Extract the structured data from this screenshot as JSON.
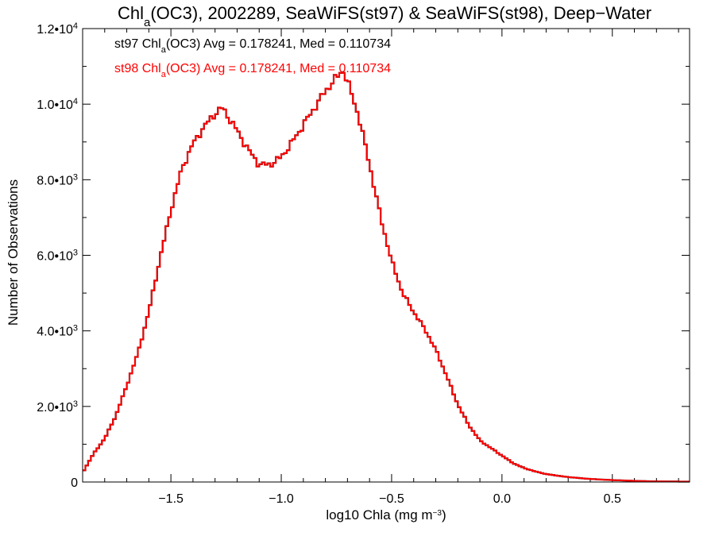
{
  "chart_data": {
    "type": "line",
    "step": true,
    "title": {
      "pre": "Chl",
      "sub": "a",
      "post": "(OC3), 2002289, SeaWiFS(st97) & SeaWiFS(st98), Deep−Water"
    },
    "xlabel": {
      "pre": "log10 Chla (mg m",
      "sup": "−3",
      "post": ")"
    },
    "ylabel": "Number of Observations",
    "xlim": [
      -1.9,
      0.85
    ],
    "ylim": [
      0,
      12000
    ],
    "x_ticks": [
      {
        "value": -1.5,
        "label": "−1.5"
      },
      {
        "value": -1.0,
        "label": "−1.0"
      },
      {
        "value": -0.5,
        "label": "−0.5"
      },
      {
        "value": 0.0,
        "label": "0.0"
      },
      {
        "value": 0.5,
        "label": "0.5"
      }
    ],
    "y_ticks": [
      {
        "value": 0,
        "mant": "0",
        "exp": ""
      },
      {
        "value": 2000,
        "mant": "2.0•10",
        "exp": "3"
      },
      {
        "value": 4000,
        "mant": "4.0•10",
        "exp": "3"
      },
      {
        "value": 6000,
        "mant": "6.0•10",
        "exp": "3"
      },
      {
        "value": 8000,
        "mant": "8.0•10",
        "exp": "3"
      },
      {
        "value": 10000,
        "mant": "1.0•10",
        "exp": "4"
      },
      {
        "value": 12000,
        "mant": "1.2•10",
        "exp": "4"
      }
    ],
    "legend_position": "top-left",
    "legend": [
      {
        "series": "st97",
        "pre": "st97 Chl",
        "sub": "a",
        "post": "(OC3) Avg = 0.178241, Med = 0.110734",
        "color": "#000000"
      },
      {
        "series": "st98",
        "pre": "st98 Chl",
        "sub": "a",
        "post": "(OC3) Avg = 0.178241, Med = 0.110734",
        "color": "#ff0000"
      }
    ],
    "series": [
      {
        "name": "st97",
        "color": "#000000"
      },
      {
        "name": "st98",
        "color": "#ff0000"
      }
    ],
    "x": [
      -1.9,
      -1.85,
      -1.8,
      -1.75,
      -1.7,
      -1.65,
      -1.6,
      -1.55,
      -1.5,
      -1.45,
      -1.4,
      -1.35,
      -1.3,
      -1.27,
      -1.25,
      -1.2,
      -1.15,
      -1.1,
      -1.05,
      -1.0,
      -0.95,
      -0.9,
      -0.85,
      -0.8,
      -0.75,
      -0.72,
      -0.7,
      -0.65,
      -0.6,
      -0.55,
      -0.5,
      -0.45,
      -0.4,
      -0.35,
      -0.3,
      -0.25,
      -0.2,
      -0.15,
      -0.1,
      -0.05,
      0.0,
      0.05,
      0.1,
      0.15,
      0.2,
      0.3,
      0.4,
      0.5,
      0.6,
      0.7,
      0.85
    ],
    "values": [
      250,
      750,
      1150,
      1750,
      2550,
      3400,
      4500,
      5900,
      7200,
      8300,
      8950,
      9400,
      9750,
      9900,
      9750,
      9300,
      8800,
      8400,
      8400,
      8600,
      9000,
      9450,
      9900,
      10350,
      10700,
      10900,
      10600,
      9700,
      8400,
      7000,
      5850,
      5000,
      4500,
      4050,
      3500,
      2800,
      2050,
      1500,
      1100,
      900,
      700,
      500,
      370,
      280,
      210,
      130,
      80,
      50,
      30,
      15,
      10
    ]
  }
}
